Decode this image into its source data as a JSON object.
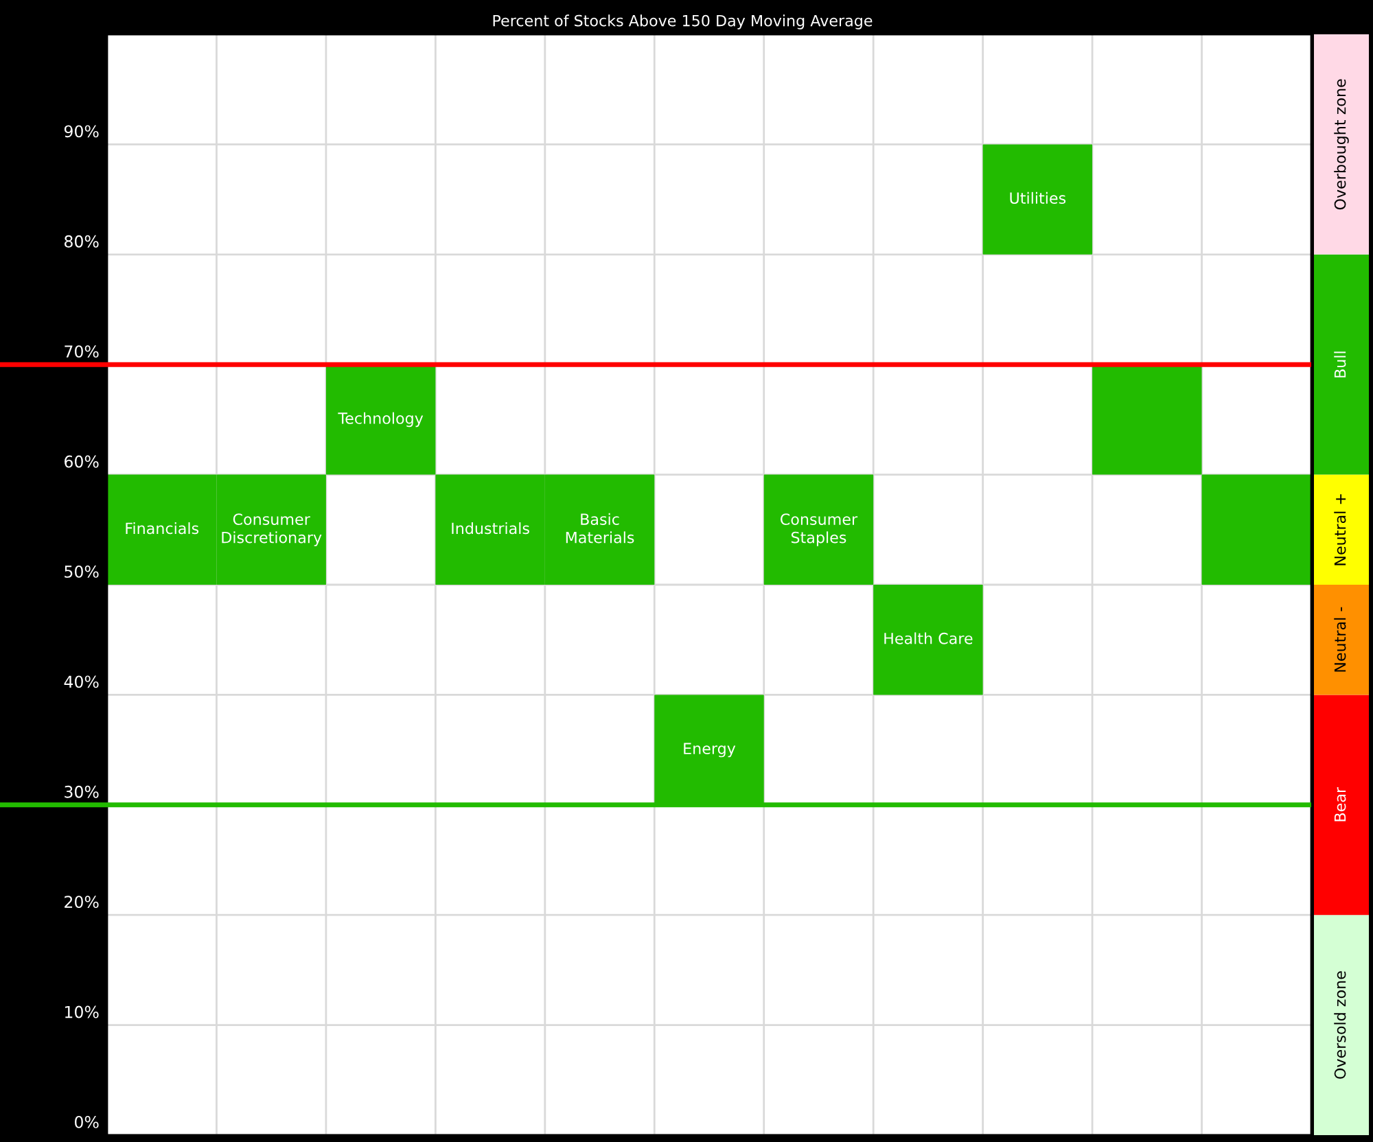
{
  "chart_data": [
    {
      "type": "bar",
      "title": "Percent of Stocks Above 150 Day Moving Average",
      "categories": [
        "Financials",
        "Consumer Discretionary",
        "Technology",
        "Industrials",
        "Basic Materials",
        "Energy",
        "Consumer Staples",
        "Health Care",
        "Utilities",
        null,
        null
      ],
      "values": [
        10,
        10,
        10,
        10,
        10,
        10,
        10,
        10,
        10,
        10,
        10
      ],
      "base": [
        50,
        50,
        60,
        50,
        50,
        30,
        50,
        40,
        80,
        60,
        50
      ],
      "color": "#22bb00",
      "ylim": [
        0,
        100
      ],
      "yticks": [
        {
          "value": 0,
          "label": "0%"
        },
        {
          "value": 10,
          "label": "10%"
        },
        {
          "value": 20,
          "label": "20%"
        },
        {
          "value": 30,
          "label": "30%"
        },
        {
          "value": 40,
          "label": "40%"
        },
        {
          "value": 50,
          "label": "50%"
        },
        {
          "value": 60,
          "label": "60%"
        },
        {
          "value": 70,
          "label": "70%"
        },
        {
          "value": 80,
          "label": "80%"
        },
        {
          "value": 90,
          "label": "90%"
        }
      ],
      "grid": true,
      "tick_labels": "y",
      "ref_lines": [
        {
          "axis": "y",
          "value": 70,
          "color": "#ff0000"
        },
        {
          "axis": "y",
          "value": 30,
          "color": "#22bb00"
        }
      ]
    },
    {
      "type": "bar",
      "stacked": true,
      "categories": [
        null
      ],
      "series": [
        {
          "name": "Oversold zone",
          "color": "#d4ffd4",
          "values": [
            20
          ]
        },
        {
          "name": "Bear",
          "color": "#ff0000",
          "values": [
            20
          ]
        },
        {
          "name": "Neutral -",
          "color": "#ff9000",
          "values": [
            10
          ]
        },
        {
          "name": "Neutral +",
          "color": "#ffff00",
          "values": [
            10
          ]
        },
        {
          "name": "Bull",
          "color": "#22bb00",
          "values": [
            20
          ]
        },
        {
          "name": "Overbought zone",
          "color": "#ffd9e6",
          "values": [
            20
          ]
        }
      ],
      "ylim": [
        0,
        100
      ],
      "tick_labels": false
    }
  ]
}
